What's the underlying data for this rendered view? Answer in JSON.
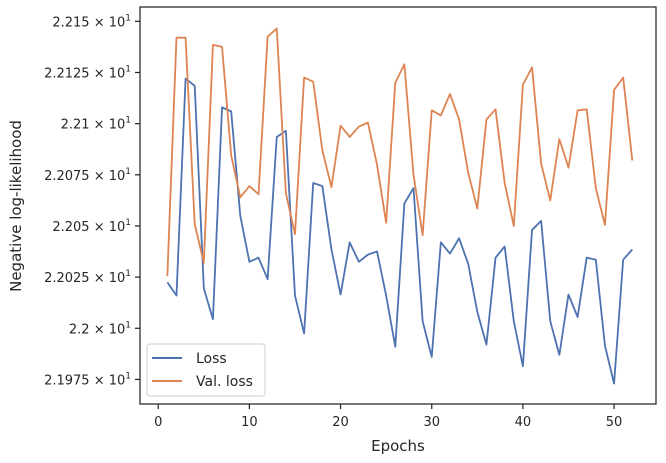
{
  "chart_data": {
    "type": "line",
    "xlabel": "Epochs",
    "ylabel": "Negative log-likelihood",
    "xlim": [
      -2,
      54.6
    ],
    "ylim": [
      2.1963,
      2.2157
    ],
    "xticks": [
      0,
      10,
      20,
      30,
      40,
      50
    ],
    "xtick_labels": [
      "0",
      "10",
      "20",
      "30",
      "40",
      "50"
    ],
    "yticks": [
      2.1975,
      2.2,
      2.2025,
      2.205,
      2.2075,
      2.21,
      2.2125,
      2.215
    ],
    "ytick_mantissas": [
      "2.1975",
      "2.2",
      "2.2025",
      "2.205",
      "2.2075",
      "2.21",
      "2.2125",
      "2.215"
    ],
    "ytick_suffix": "× 10",
    "ytick_exponent": "1",
    "grid": false,
    "legend_position": "lower-left",
    "x": [
      1,
      2,
      3,
      4,
      5,
      6,
      7,
      8,
      9,
      10,
      11,
      12,
      13,
      14,
      15,
      16,
      17,
      18,
      19,
      20,
      21,
      22,
      23,
      24,
      25,
      26,
      27,
      28,
      29,
      30,
      31,
      32,
      33,
      34,
      35,
      36,
      37,
      38,
      39,
      40,
      41,
      42,
      43,
      44,
      45,
      46,
      47,
      48,
      49,
      50,
      51,
      52
    ],
    "series": [
      {
        "name": "Loss",
        "color": "#4c72b0",
        "values": [
          2.20225,
          2.2016,
          2.2122,
          2.21185,
          2.20195,
          2.20045,
          2.2108,
          2.2106,
          2.2055,
          2.20325,
          2.20345,
          2.2024,
          2.20935,
          2.20965,
          2.2016,
          2.19975,
          2.2071,
          2.20695,
          2.20385,
          2.20165,
          2.2042,
          2.20325,
          2.2036,
          2.20375,
          2.2016,
          2.1991,
          2.2061,
          2.20685,
          2.20035,
          2.1986,
          2.2042,
          2.20365,
          2.2044,
          2.20315,
          2.2008,
          2.1992,
          2.20345,
          2.204,
          2.20035,
          2.19815,
          2.2048,
          2.20525,
          2.20035,
          2.1987,
          2.20165,
          2.20055,
          2.20345,
          2.20335,
          2.19915,
          2.1973,
          2.20335,
          2.20385
        ]
      },
      {
        "name": "Val. loss",
        "color": "#dd8452",
        "values": [
          2.20255,
          2.2142,
          2.2142,
          2.2051,
          2.2032,
          2.21385,
          2.21375,
          2.20845,
          2.2064,
          2.20695,
          2.20655,
          2.21425,
          2.21465,
          2.2066,
          2.2046,
          2.21225,
          2.21205,
          2.2087,
          2.2069,
          2.2099,
          2.20935,
          2.20985,
          2.21005,
          2.208,
          2.20515,
          2.212,
          2.2129,
          2.2075,
          2.20455,
          2.21065,
          2.2104,
          2.21145,
          2.2102,
          2.2076,
          2.20585,
          2.2102,
          2.2107,
          2.2071,
          2.205,
          2.2119,
          2.21275,
          2.20805,
          2.20625,
          2.20925,
          2.20785,
          2.21065,
          2.2107,
          2.20685,
          2.20505,
          2.21165,
          2.21225,
          2.2082
        ]
      }
    ]
  }
}
